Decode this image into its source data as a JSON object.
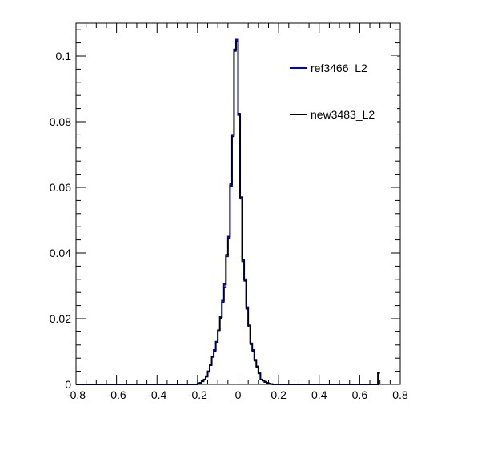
{
  "chart_data": {
    "type": "line",
    "title": "",
    "xlabel": "",
    "ylabel": "",
    "xlim": [
      -0.8,
      0.8
    ],
    "ylim": [
      0,
      0.11
    ],
    "x_ticks": [
      "-0.8",
      "-0.6",
      "-0.4",
      "-0.2",
      "0",
      "0.2",
      "0.4",
      "0.6",
      "0.8"
    ],
    "y_ticks": [
      "0",
      "0.02",
      "0.04",
      "0.06",
      "0.08",
      "0.1"
    ],
    "bin_edges_start": -0.8,
    "bin_width": 0.01,
    "legend_position": "top-right",
    "series": [
      {
        "name": "ref3466_L2",
        "color": "#0000cc",
        "values": [
          0,
          0,
          0,
          0,
          0,
          0,
          0,
          0,
          0,
          0,
          0,
          0,
          0,
          0,
          0,
          0,
          0,
          0,
          0,
          0,
          0,
          0,
          0,
          0,
          0,
          0,
          0,
          0,
          0,
          0,
          0,
          0,
          0,
          0,
          0,
          0,
          0,
          0,
          0,
          0,
          0,
          0,
          0,
          0,
          0,
          0,
          0,
          0,
          0,
          0,
          0,
          0,
          0,
          0,
          0,
          0,
          0,
          0,
          0,
          0,
          0.0002,
          0.0005,
          0.001,
          0.0015,
          0.0025,
          0.004,
          0.006,
          0.0085,
          0.0105,
          0.013,
          0.0165,
          0.0205,
          0.0255,
          0.0305,
          0.039,
          0.045,
          0.0605,
          0.076,
          0.102,
          0.105,
          0.082,
          0.057,
          0.0375,
          0.032,
          0.0235,
          0.018,
          0.0125,
          0.0105,
          0.0075,
          0.0055,
          0.0035,
          0.0015,
          0.0012,
          0.0008,
          0.0005,
          0.0002,
          0.0001,
          0,
          0,
          0,
          0,
          0,
          0,
          0,
          0,
          0,
          0,
          0,
          0,
          0,
          0,
          0,
          0,
          0,
          0,
          0,
          0,
          0,
          0,
          0,
          0,
          0,
          0,
          0,
          0,
          0,
          0,
          0,
          0,
          0,
          0,
          0,
          0,
          0,
          0,
          0,
          0,
          0,
          0,
          0,
          0,
          0,
          0,
          0,
          0,
          0,
          0,
          0,
          0,
          0.0035
        ]
      },
      {
        "name": "new3483_L2",
        "color": "#000000",
        "values": [
          0,
          0,
          0,
          0,
          0,
          0,
          0,
          0,
          0,
          0,
          0,
          0,
          0,
          0,
          0,
          0,
          0,
          0,
          0,
          0,
          0,
          0,
          0,
          0,
          0,
          0,
          0,
          0,
          0,
          0,
          0,
          0,
          0,
          0,
          0,
          0,
          0,
          0,
          0,
          0,
          0,
          0,
          0,
          0,
          0,
          0,
          0,
          0,
          0,
          0,
          0,
          0,
          0,
          0,
          0,
          0,
          0,
          0,
          0,
          0,
          0.0002,
          0.0004,
          0.0009,
          0.0014,
          0.0023,
          0.0038,
          0.0058,
          0.0083,
          0.0102,
          0.0128,
          0.0162,
          0.0202,
          0.025,
          0.0295,
          0.0395,
          0.0445,
          0.061,
          0.0755,
          0.1015,
          0.1045,
          0.0825,
          0.0565,
          0.038,
          0.0315,
          0.023,
          0.0175,
          0.0122,
          0.0102,
          0.0072,
          0.0052,
          0.0033,
          0.0014,
          0.0011,
          0.0007,
          0.0004,
          0.0002,
          0.0001,
          0,
          0,
          0,
          0,
          0,
          0,
          0,
          0,
          0,
          0,
          0,
          0,
          0,
          0,
          0,
          0,
          0,
          0,
          0,
          0,
          0,
          0,
          0,
          0,
          0,
          0,
          0,
          0,
          0,
          0,
          0,
          0,
          0,
          0,
          0,
          0,
          0,
          0,
          0,
          0,
          0,
          0,
          0,
          0,
          0,
          0,
          0,
          0,
          0,
          0,
          0,
          0,
          0.0035
        ]
      }
    ]
  }
}
